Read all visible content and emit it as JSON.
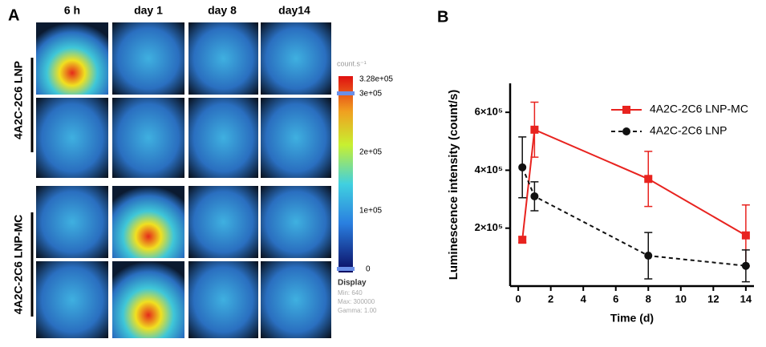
{
  "panel_a": {
    "label": "A",
    "columns": [
      "6 h",
      "day 1",
      "day 8",
      "day14"
    ],
    "groups": [
      "4A2C-2C6 LNP",
      "4A2C-2C6 LNP-MC"
    ],
    "colorbar": {
      "unit": "count.s⁻¹",
      "labels": [
        "3.28e+05",
        "3e+05",
        "2e+05",
        "1e+05",
        "0"
      ]
    },
    "display": {
      "title": "Display",
      "lines": [
        "Min: 640",
        "Max: 300000",
        "Gamma: 1.00"
      ]
    }
  },
  "chart_data": {
    "type": "line",
    "panel_label": "B",
    "xlabel": "Time (d)",
    "ylabel": "Luminescence intensity (count/s)",
    "xlim": [
      -0.5,
      14.5
    ],
    "xticks": [
      0,
      2,
      4,
      6,
      8,
      10,
      12,
      14
    ],
    "ylim": [
      0,
      700000
    ],
    "yticks": [
      {
        "value": 200000,
        "label": "2×10⁵"
      },
      {
        "value": 400000,
        "label": "4×10⁵"
      },
      {
        "value": 600000,
        "label": "6×10⁵"
      }
    ],
    "x": [
      0.25,
      1,
      8,
      14
    ],
    "series": [
      {
        "name": "4A2C-2C6 LNP-MC",
        "color": "#e8231f",
        "marker": "square",
        "dash": false,
        "values": [
          160000,
          540000,
          370000,
          175000
        ],
        "errors": [
          10000,
          95000,
          95000,
          105000
        ]
      },
      {
        "name": "4A2C-2C6 LNP",
        "color": "#111111",
        "marker": "circle",
        "dash": true,
        "values": [
          410000,
          310000,
          105000,
          70000
        ],
        "errors": [
          105000,
          50000,
          80000,
          55000
        ]
      }
    ]
  }
}
